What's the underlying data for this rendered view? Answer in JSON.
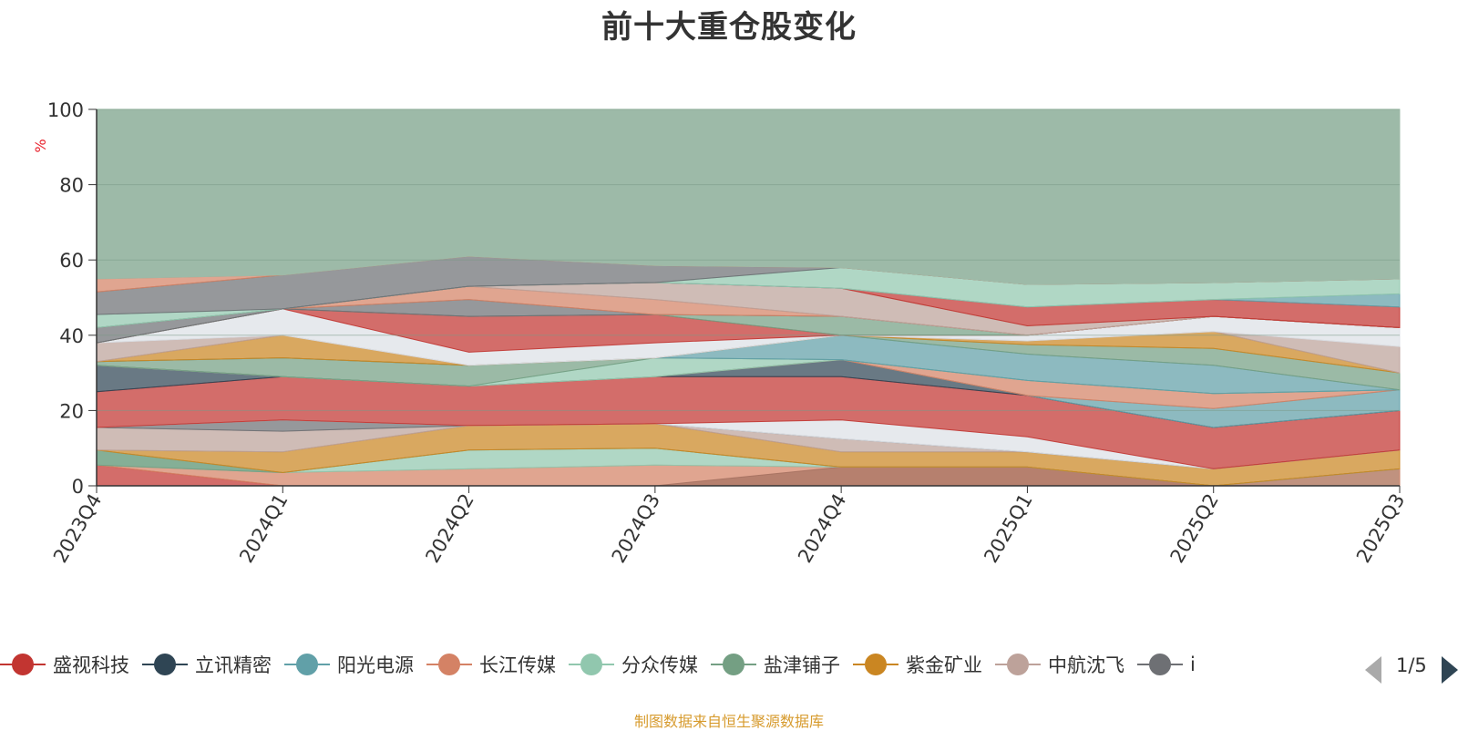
{
  "colors": {
    "title": "#333333",
    "axis": "#333333",
    "ylabel": "#e8232e",
    "source": "#d79b2e",
    "background_area": "#9dbaa8",
    "pager_active": "#2f4554",
    "pager_inactive": "#aaaaaa"
  },
  "pager": {
    "text": "1/5"
  },
  "source_text": "制图数据来自恒生聚源数据库",
  "chart_data": {
    "type": "area",
    "title": "前十大重仓股变化",
    "ylabel": "%",
    "xlabel": "",
    "ylim": [
      0,
      100
    ],
    "yticks": [
      0,
      20,
      40,
      60,
      80,
      100
    ],
    "grid": true,
    "legend_position": "bottom",
    "categories": [
      "2023Q4",
      "2024Q1",
      "2024Q2",
      "2024Q3",
      "2024Q4",
      "2025Q1",
      "2025Q2",
      "2025Q3"
    ],
    "legend": [
      {
        "name": "盛视科技",
        "color": "#c23531"
      },
      {
        "name": "立讯精密",
        "color": "#2f4554"
      },
      {
        "name": "阳光电源",
        "color": "#61a0a8"
      },
      {
        "name": "长江传媒",
        "color": "#d48265"
      },
      {
        "name": "分众传媒",
        "color": "#91c7ae"
      },
      {
        "name": "盐津铺子",
        "color": "#749f83"
      },
      {
        "name": "紫金矿业",
        "color": "#ca8622"
      },
      {
        "name": "中航沈飞",
        "color": "#bda29a"
      },
      {
        "name": "i",
        "color": "#6e7074"
      }
    ],
    "bands": [
      {
        "color": "#c23531",
        "lower": [
          0,
          0,
          0,
          0,
          0,
          0,
          0,
          0
        ],
        "upper": [
          5.5,
          0,
          0,
          0,
          0,
          0,
          0,
          0
        ]
      },
      {
        "color": "#2f4554",
        "lower": [
          0,
          0,
          0,
          0,
          0,
          0,
          0,
          0
        ],
        "upper": [
          0,
          0,
          0,
          0,
          5,
          5,
          0,
          0
        ]
      },
      {
        "color": "#61a0a8",
        "lower": [
          0,
          0,
          0,
          0,
          0,
          0,
          0,
          0
        ],
        "upper": [
          0,
          0,
          0,
          0,
          0,
          0,
          0,
          4.5
        ]
      },
      {
        "color": "#d48265",
        "lower": [
          5.5,
          0,
          0,
          0,
          0,
          0,
          0,
          0
        ],
        "upper": [
          5.5,
          3.5,
          4.5,
          5.5,
          5,
          5,
          0,
          4.5
        ]
      },
      {
        "color": "#91c7ae",
        "lower": [
          5.5,
          3.5,
          4.5,
          5.5,
          5,
          5,
          0,
          4.5
        ],
        "upper": [
          9.5,
          3.5,
          9.5,
          10,
          5,
          5,
          0,
          4.5
        ]
      },
      {
        "color": "#749f83",
        "lower": [
          5.5,
          3.5,
          9.5,
          10,
          5,
          5,
          0,
          4.5
        ],
        "upper": [
          9.5,
          3.5,
          9.5,
          10,
          5,
          5,
          0,
          4.5
        ]
      },
      {
        "color": "#ca8622",
        "lower": [
          9.5,
          3.5,
          9.5,
          10,
          5,
          5,
          0,
          4.5
        ],
        "upper": [
          9.5,
          9,
          16,
          16.5,
          9,
          9,
          4.5,
          9.5
        ]
      },
      {
        "color": "#bda29a",
        "lower": [
          9.5,
          9,
          16,
          16.5,
          9,
          9,
          4.5,
          9.5
        ],
        "upper": [
          15.5,
          14.5,
          16,
          16.5,
          12.5,
          9,
          4.5,
          9.5
        ]
      },
      {
        "color": "#6e7074",
        "lower": [
          15.5,
          14.5,
          16,
          16.5,
          12.5,
          9,
          4.5,
          9.5
        ],
        "upper": [
          15.5,
          17.5,
          16,
          16.5,
          12.5,
          9,
          4.5,
          9.5
        ]
      },
      {
        "color": "#dce0e6",
        "lower": [
          15.5,
          17.5,
          16,
          16.5,
          12.5,
          9,
          4.5,
          9.5
        ],
        "upper": [
          15.5,
          17.5,
          16,
          16.5,
          17.5,
          13,
          4.5,
          9.5
        ]
      },
      {
        "color": "#c23531",
        "lower": [
          15.5,
          17.5,
          16,
          16.5,
          17.5,
          13,
          4.5,
          9.5
        ],
        "upper": [
          25,
          29,
          26.5,
          29,
          29,
          24,
          15.5,
          20
        ]
      },
      {
        "color": "#2f4554",
        "lower": [
          25,
          29,
          26.5,
          29,
          29,
          24,
          15.5,
          20
        ],
        "upper": [
          32,
          29,
          26.5,
          29,
          33.5,
          24,
          15.5,
          20
        ]
      },
      {
        "color": "#61a0a8",
        "lower": [
          32,
          29,
          26.5,
          29,
          33.5,
          24,
          15.5,
          20
        ],
        "upper": [
          32,
          29,
          26.5,
          29,
          33.5,
          24,
          20.5,
          25.5
        ]
      },
      {
        "color": "#d48265",
        "lower": [
          32,
          29,
          26.5,
          29,
          33.5,
          24,
          20.5,
          25.5
        ],
        "upper": [
          32,
          29,
          26.5,
          29,
          33.5,
          28,
          24.5,
          25.5
        ]
      },
      {
        "color": "#91c7ae",
        "lower": [
          32,
          29,
          26.5,
          29,
          33.5,
          28,
          24.5,
          25.5
        ],
        "upper": [
          32,
          29,
          26.5,
          34,
          33.5,
          28,
          24.5,
          25.5
        ]
      },
      {
        "color": "#749f83",
        "lower": [
          32,
          29,
          26.5,
          34,
          33.5,
          28,
          24.5,
          25.5
        ],
        "upper": [
          33,
          34,
          32,
          34,
          33.5,
          28,
          24.5,
          25.5
        ]
      },
      {
        "color": "#61a0a8",
        "lower": [
          33,
          34,
          32,
          34,
          33.5,
          28,
          24.5,
          25.5
        ],
        "upper": [
          33,
          34,
          32,
          34,
          40,
          35,
          32,
          25.5
        ]
      },
      {
        "color": "#749f83",
        "lower": [
          33,
          34,
          32,
          34,
          40,
          35,
          32,
          25.5
        ],
        "upper": [
          33,
          34,
          32,
          34,
          40,
          37.5,
          36.5,
          30
        ]
      },
      {
        "color": "#ca8622",
        "lower": [
          33,
          34,
          32,
          34,
          40,
          37.5,
          36.5,
          30
        ],
        "upper": [
          33,
          40,
          32,
          34,
          40,
          38.5,
          41,
          30
        ]
      },
      {
        "color": "#bda29a",
        "lower": [
          33,
          40,
          32,
          34,
          40,
          38.5,
          41,
          30
        ],
        "upper": [
          38,
          40,
          32,
          34,
          40,
          38.5,
          41,
          37
        ]
      },
      {
        "color": "#dce0e6",
        "lower": [
          38,
          40,
          32,
          34,
          40,
          38.5,
          41,
          37
        ],
        "upper": [
          38,
          47,
          35.5,
          38,
          40,
          40,
          45,
          42
        ]
      },
      {
        "color": "#c23531",
        "lower": [
          38,
          47,
          35.5,
          38,
          40,
          40,
          45,
          42
        ],
        "upper": [
          38,
          47,
          45,
          45.5,
          40,
          40,
          45,
          42
        ]
      },
      {
        "color": "#749f83",
        "lower": [
          38,
          47,
          45,
          45.5,
          40,
          40,
          45,
          42
        ],
        "upper": [
          38,
          47,
          45,
          45.5,
          45,
          40,
          45,
          42
        ]
      },
      {
        "color": "#6e7074",
        "lower": [
          38,
          47,
          45,
          45.5,
          45,
          40,
          45,
          42
        ],
        "upper": [
          42,
          47,
          49.5,
          45.5,
          45,
          40,
          45,
          42
        ]
      },
      {
        "color": "#d48265",
        "lower": [
          42,
          47,
          49.5,
          45.5,
          45,
          40,
          45,
          42
        ],
        "upper": [
          42,
          47,
          53,
          49.5,
          45,
          40,
          45,
          42
        ]
      },
      {
        "color": "#bda29a",
        "lower": [
          42,
          47,
          53,
          49.5,
          45,
          40,
          45,
          42
        ],
        "upper": [
          42,
          47,
          53,
          54,
          52.5,
          42.5,
          45,
          42
        ]
      },
      {
        "color": "#c23531",
        "lower": [
          42,
          47,
          53,
          54,
          52.5,
          42.5,
          45,
          42
        ],
        "upper": [
          42,
          47,
          53,
          54,
          52.5,
          47.5,
          49.5,
          47.5
        ]
      },
      {
        "color": "#61a0a8",
        "lower": [
          42,
          47,
          53,
          54,
          52.5,
          47.5,
          49.5,
          47.5
        ],
        "upper": [
          42,
          47,
          53,
          54,
          52.5,
          47.5,
          49.5,
          51
        ]
      },
      {
        "color": "#91c7ae",
        "lower": [
          42,
          47,
          53,
          54,
          52.5,
          47.5,
          49.5,
          51
        ],
        "upper": [
          45.5,
          47,
          53,
          54,
          58,
          53.5,
          54,
          55
        ]
      },
      {
        "color": "#6e7074",
        "lower": [
          45.5,
          47,
          53,
          54,
          58,
          53.5,
          54,
          55
        ],
        "upper": [
          51.5,
          56,
          61,
          58.5,
          58,
          53.5,
          54,
          55
        ]
      },
      {
        "color": "#d48265",
        "lower": [
          51.5,
          56,
          61,
          58.5,
          58,
          53.5,
          54,
          55
        ],
        "upper": [
          55,
          56,
          61,
          58.5,
          58,
          53.5,
          54,
          55
        ]
      },
      {
        "color": "#9dbaa8",
        "lower": [
          55,
          56,
          61,
          58.5,
          58,
          53.5,
          54,
          55
        ],
        "upper": [
          100,
          100,
          100,
          100,
          100,
          100,
          100,
          100
        ]
      }
    ]
  }
}
